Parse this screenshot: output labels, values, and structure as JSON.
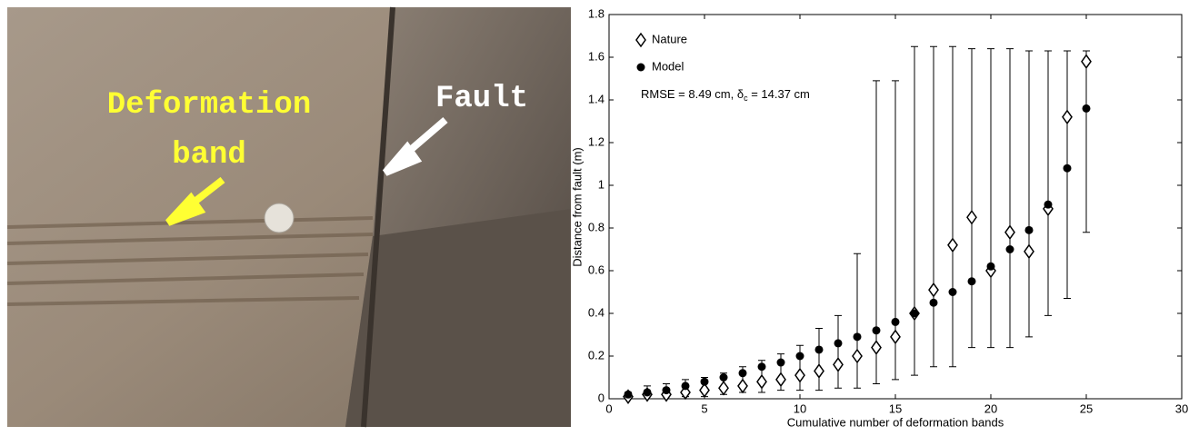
{
  "photo": {
    "band_label": [
      "Deformation",
      "band"
    ],
    "fault_label": "Fault"
  },
  "chart_data": {
    "type": "scatter",
    "x_label": "Cumulative number of deformation bands",
    "y_label": "Distance from fault (m)",
    "annotation": [
      "RMSE = 8.49 cm, δ",
      "c",
      " = 14.37 cm"
    ],
    "x": [
      1,
      2,
      3,
      4,
      5,
      6,
      7,
      8,
      9,
      10,
      11,
      12,
      13,
      14,
      15,
      16,
      17,
      18,
      19,
      20,
      21,
      22,
      23,
      24,
      25
    ],
    "series": [
      {
        "name": "Nature",
        "marker": "diamond",
        "color": "#000000",
        "values": [
          0.01,
          0.02,
          0.02,
          0.03,
          0.04,
          0.05,
          0.06,
          0.08,
          0.09,
          0.11,
          0.13,
          0.16,
          0.2,
          0.24,
          0.29,
          0.4,
          0.51,
          0.72,
          0.85,
          0.6,
          0.78,
          0.69,
          0.89,
          1.32,
          1.58
        ],
        "lower": [
          0,
          0,
          0.01,
          0.01,
          0.01,
          0.02,
          0.03,
          0.03,
          0.04,
          0.04,
          0.04,
          0.05,
          0.05,
          0.07,
          0.09,
          0.11,
          0.15,
          0.15,
          0.24,
          0.24,
          0.24,
          0.29,
          0.39,
          0.47,
          0.78
        ],
        "upper": [
          0.03,
          0.06,
          0.07,
          0.09,
          0.1,
          0.12,
          0.15,
          0.18,
          0.21,
          0.25,
          0.33,
          0.39,
          0.68,
          1.49,
          1.49,
          1.65,
          1.65,
          1.65,
          1.64,
          1.64,
          1.64,
          1.63,
          1.63,
          1.63,
          1.63
        ]
      },
      {
        "name": "Model",
        "marker": "circle",
        "color": "#000000",
        "values": [
          0.02,
          0.03,
          0.04,
          0.06,
          0.08,
          0.1,
          0.12,
          0.15,
          0.17,
          0.2,
          0.23,
          0.26,
          0.29,
          0.32,
          0.36,
          0.4,
          0.45,
          0.5,
          0.55,
          0.62,
          0.7,
          0.79,
          0.91,
          1.08,
          1.36
        ]
      }
    ],
    "xlim": [
      0,
      30
    ],
    "xticks": [
      0,
      5,
      10,
      15,
      20,
      25,
      30
    ],
    "ylim": [
      0,
      1.8
    ],
    "yticks": [
      0,
      0.2,
      0.4,
      0.6,
      0.8,
      1,
      1.2,
      1.4,
      1.6,
      1.8
    ],
    "grid": false,
    "legend": "upper left"
  }
}
